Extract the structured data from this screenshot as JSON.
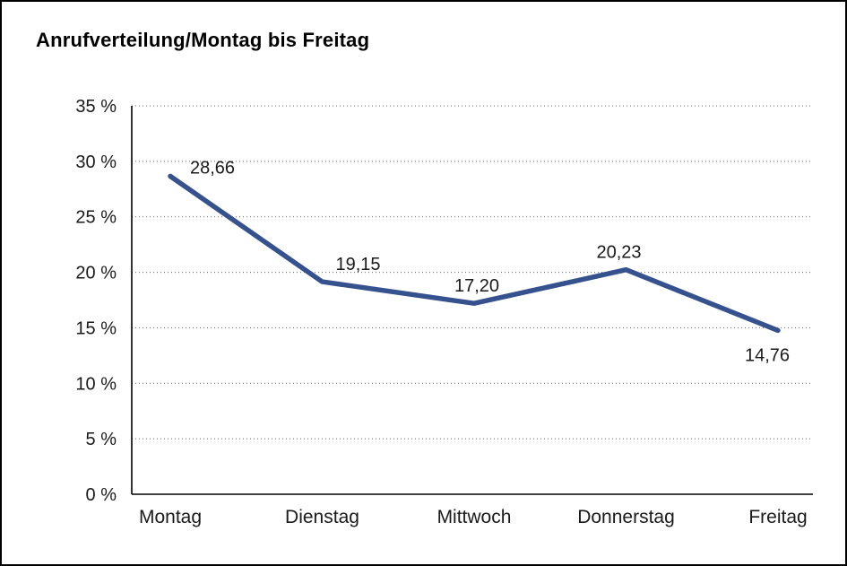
{
  "chart_data": {
    "type": "line",
    "title": "Anrufverteilung/Montag bis Freitag",
    "categories": [
      "Montag",
      "Dienstag",
      "Mittwoch",
      "Donnerstag",
      "Freitag"
    ],
    "values": [
      28.66,
      19.15,
      17.2,
      20.23,
      14.76
    ],
    "value_labels": [
      "28,66",
      "19,15",
      "17,20",
      "20,23",
      "14,76"
    ],
    "y_ticks": [
      {
        "value": 0,
        "label": "0 %"
      },
      {
        "value": 5,
        "label": "5 %"
      },
      {
        "value": 10,
        "label": "10 %"
      },
      {
        "value": 15,
        "label": "15 %"
      },
      {
        "value": 20,
        "label": "20 %"
      },
      {
        "value": 25,
        "label": "25 %"
      },
      {
        "value": 30,
        "label": "30 %"
      },
      {
        "value": 35,
        "label": "35 %"
      }
    ],
    "ylim": [
      0,
      35
    ],
    "xlabel": "",
    "ylabel": "",
    "grid": "dotted-horizontal",
    "legend": "none",
    "line_color": "#35518E",
    "text_color": "#1a1a1a",
    "axis_color": "#000000"
  }
}
